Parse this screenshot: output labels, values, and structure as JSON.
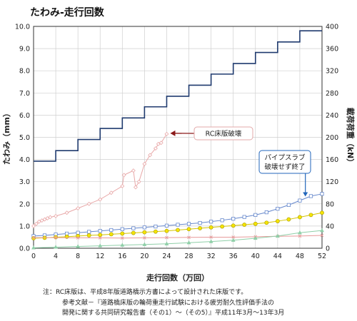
{
  "chart_data": {
    "type": "line",
    "title": "たわみ-走行回数",
    "xlabel": "走行回数（万回）",
    "ylabel_left": "たわみ（mm）",
    "ylabel_right": "載荷荷重（kN）",
    "xlim": [
      0,
      52
    ],
    "ylim_left": [
      0,
      10
    ],
    "ylim_right": [
      0,
      400
    ],
    "x_ticks": [
      0,
      4,
      8,
      12,
      16,
      20,
      24,
      28,
      32,
      36,
      40,
      44,
      48,
      52
    ],
    "y_left_ticks": [
      "0.0",
      "1.0",
      "2.0",
      "3.0",
      "4.0",
      "5.0",
      "6.0",
      "7.0",
      "8.0",
      "9.0",
      "10.0"
    ],
    "y_right_ticks": [
      0,
      40,
      80,
      120,
      160,
      200,
      240,
      280,
      320,
      360,
      400
    ],
    "grid": true,
    "load_series": {
      "axis": "right",
      "color": "#1f3a6e",
      "x": [
        0,
        4,
        4,
        8,
        8,
        12,
        12,
        16,
        16,
        20,
        20,
        24,
        24,
        28,
        28,
        32,
        32,
        36,
        36,
        40,
        40,
        44,
        44,
        48,
        48,
        52
      ],
      "y": [
        157,
        157,
        176,
        176,
        196,
        196,
        216,
        216,
        235,
        235,
        255,
        255,
        274,
        274,
        294,
        294,
        314,
        314,
        333,
        333,
        353,
        353,
        372,
        372,
        392,
        392
      ]
    },
    "series": [
      {
        "color": "#e8a8a8",
        "marker": "diamond",
        "x": [
          0,
          0.5,
          1,
          1.5,
          2,
          2.5,
          3,
          4,
          6,
          8,
          10,
          12,
          14,
          16,
          16.3,
          18,
          18.4,
          19,
          20,
          21,
          22,
          22.5,
          23,
          24
        ],
        "y": [
          1.0,
          1.1,
          1.2,
          1.25,
          1.3,
          1.35,
          1.4,
          1.45,
          1.6,
          1.8,
          2.0,
          2.2,
          2.5,
          2.8,
          3.3,
          3.5,
          2.75,
          3.0,
          3.8,
          4.2,
          4.5,
          4.7,
          4.75,
          5.15
        ]
      },
      {
        "color": "#6688cc",
        "marker": "square",
        "x": [
          0,
          2,
          4,
          6,
          8,
          10,
          12,
          14,
          16,
          18,
          20,
          22,
          24,
          26,
          28,
          30,
          32,
          34,
          36,
          38,
          40,
          42,
          44,
          46,
          48,
          50,
          52
        ],
        "y": [
          0.55,
          0.58,
          0.62,
          0.66,
          0.7,
          0.74,
          0.78,
          0.82,
          0.86,
          0.9,
          0.94,
          0.98,
          1.02,
          1.06,
          1.1,
          1.14,
          1.2,
          1.26,
          1.33,
          1.41,
          1.5,
          1.62,
          1.78,
          1.95,
          2.15,
          2.35,
          2.45
        ]
      },
      {
        "color": "#d4c400",
        "marker": "circle",
        "x": [
          0,
          2,
          4,
          6,
          8,
          10,
          12,
          14,
          16,
          18,
          20,
          22,
          24,
          26,
          28,
          30,
          32,
          34,
          36,
          38,
          40,
          42,
          44,
          46,
          48,
          50,
          52
        ],
        "y": [
          0.45,
          0.47,
          0.5,
          0.52,
          0.55,
          0.58,
          0.6,
          0.63,
          0.66,
          0.69,
          0.72,
          0.75,
          0.78,
          0.82,
          0.86,
          0.9,
          0.94,
          0.98,
          1.02,
          1.06,
          1.1,
          1.15,
          1.22,
          1.3,
          1.4,
          1.5,
          1.6
        ]
      },
      {
        "color": "#e79a9a",
        "marker": "cross",
        "x": [
          0,
          4,
          8,
          12,
          16,
          20,
          24,
          28,
          32,
          36,
          40,
          44,
          48,
          52
        ],
        "y": [
          0.48,
          0.48,
          0.47,
          0.47,
          0.46,
          0.47,
          0.48,
          0.49,
          0.5,
          0.5,
          0.52,
          0.54,
          0.55,
          0.58
        ]
      },
      {
        "color": "#8fcfa8",
        "marker": "triangle",
        "x": [
          0,
          4,
          8,
          12,
          16,
          20,
          24,
          28,
          32,
          36,
          40,
          44,
          48,
          52
        ],
        "y": [
          0.02,
          0.05,
          0.08,
          0.11,
          0.14,
          0.17,
          0.2,
          0.25,
          0.3,
          0.36,
          0.45,
          0.55,
          0.7,
          0.8
        ]
      }
    ],
    "annotations": [
      {
        "text": "RC床版破壊",
        "at_x": 24,
        "at_y": 5.15,
        "border_color": "#e3aaaa",
        "arrow_color": "#8b1a1a"
      },
      {
        "text_lines": [
          "パイプスラブ",
          "破壊せず終了"
        ],
        "at_x": 49,
        "at_y": 2.3,
        "border_color": "#2266bb",
        "arrow_color": "#2266bb"
      }
    ]
  },
  "notes": {
    "line1": "注：RC床版は、平成8年版道路橋示方書によって設計された床版です。",
    "line2": "参考文献－『道路橋床版の輪荷重走行試験における疲労耐久性評価手法の",
    "line3": "開発に関する共同研究報告書（その1）～（その5）』平成11年3月～13年3月"
  }
}
